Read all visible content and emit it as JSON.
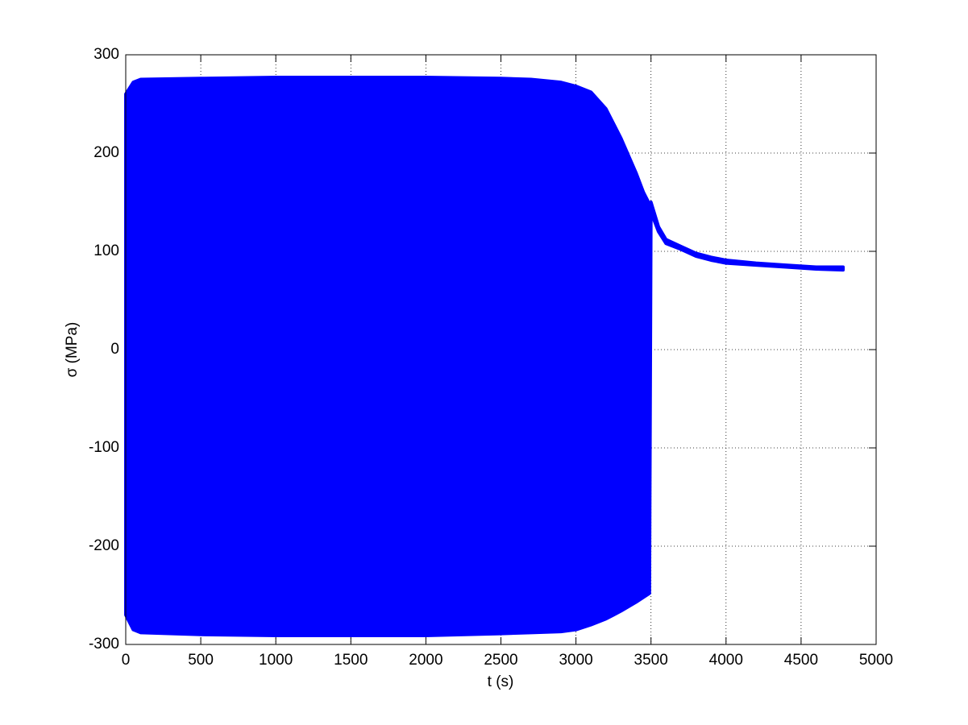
{
  "chart_data": {
    "type": "area",
    "x_label": "t (s)",
    "y_label": "σ (MPa)",
    "x": [
      0,
      50,
      100,
      500,
      1000,
      1500,
      2000,
      2500,
      2700,
      2900,
      3000,
      3100,
      3200,
      3300,
      3400,
      3450,
      3490,
      3500,
      3550,
      3600,
      3700,
      3800,
      3900,
      4000,
      4200,
      4400,
      4600,
      4780
    ],
    "series": [
      {
        "color": "#0000ff",
        "values": [
          260,
          272,
          275,
          276,
          277,
          277,
          277,
          276,
          275,
          272,
          268,
          262,
          245,
          215,
          180,
          160,
          148,
          150,
          125,
          112,
          105,
          98,
          94,
          91,
          88,
          86,
          84,
          84
        ]
      },
      {
        "color": "#0000ff",
        "values": [
          -270,
          -285,
          -288,
          -290,
          -291,
          -291,
          -291,
          -289,
          -288,
          -287,
          -285,
          -280,
          -274,
          -266,
          -257,
          -252,
          -248,
          140,
          120,
          108,
          102,
          95,
          91,
          88,
          86,
          84,
          82,
          81
        ]
      }
    ],
    "xlim": [
      0,
      5000
    ],
    "xticks": [
      0,
      500,
      1000,
      1500,
      2000,
      2500,
      3000,
      3500,
      4000,
      4500,
      5000
    ],
    "ylim": [
      -300,
      300
    ],
    "yticks": [
      -300,
      -200,
      -100,
      0,
      100,
      200,
      300
    ],
    "grid": true
  }
}
